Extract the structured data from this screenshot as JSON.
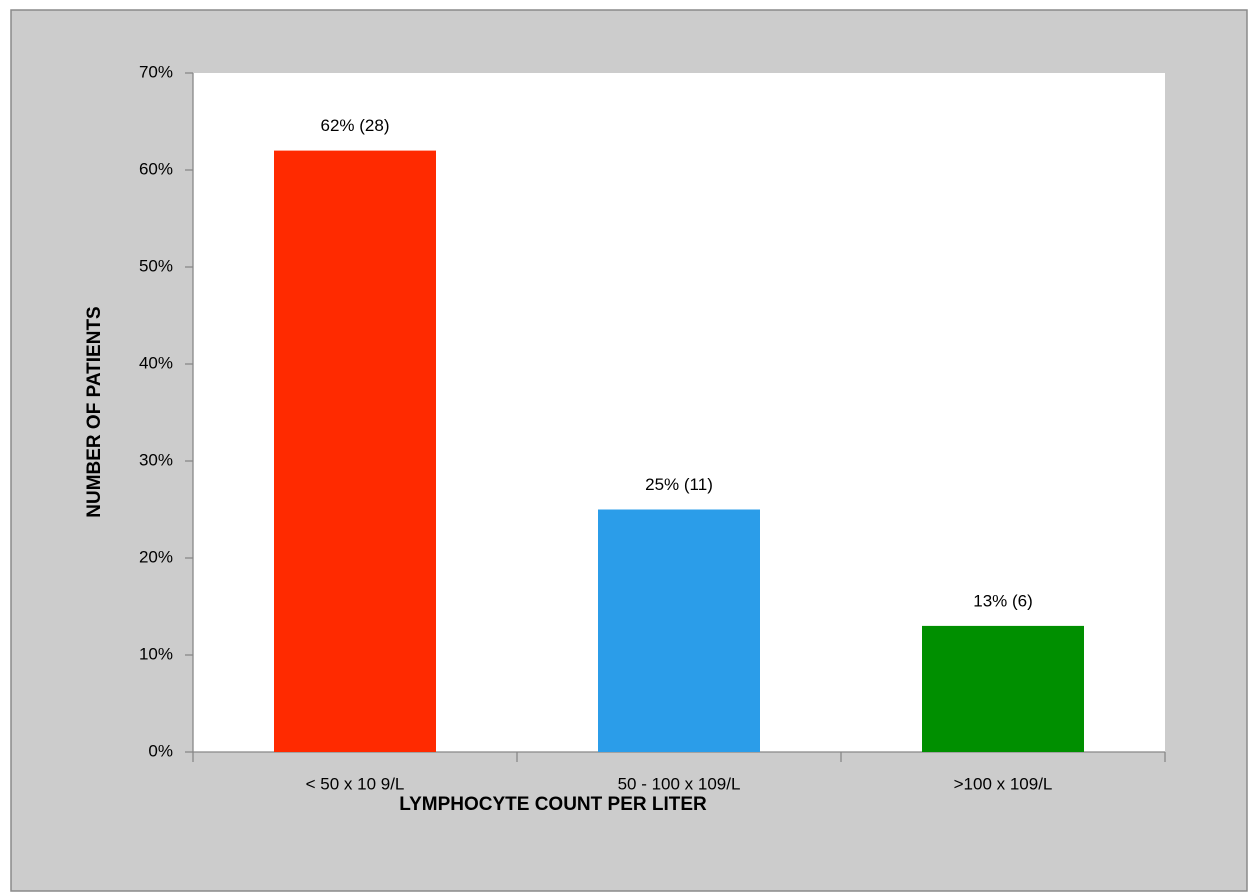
{
  "chart_data": {
    "type": "bar",
    "categories": [
      "< 50 x 10 9/L",
      "50 - 100 x 109/L",
      ">100 x 109/L"
    ],
    "values": [
      62,
      25,
      13
    ],
    "value_labels": [
      "62% (28)",
      "25% (11)",
      "13% (6)"
    ],
    "colors": [
      "#ff2a00",
      "#2b9de9",
      "#008f00"
    ],
    "x_label": "LYMPHOCYTE COUNT PER LITER",
    "y_label": "NUMBER OF PATIENTS",
    "ylim": [
      0,
      70
    ],
    "yticks": [
      {
        "value": 0,
        "label": "0%"
      },
      {
        "value": 10,
        "label": "10%"
      },
      {
        "value": 20,
        "label": "20%"
      },
      {
        "value": 30,
        "label": "30%"
      },
      {
        "value": 40,
        "label": "40%"
      },
      {
        "value": 50,
        "label": "50%"
      },
      {
        "value": 60,
        "label": "60%"
      },
      {
        "value": 70,
        "label": "70%"
      }
    ],
    "grid": false
  }
}
